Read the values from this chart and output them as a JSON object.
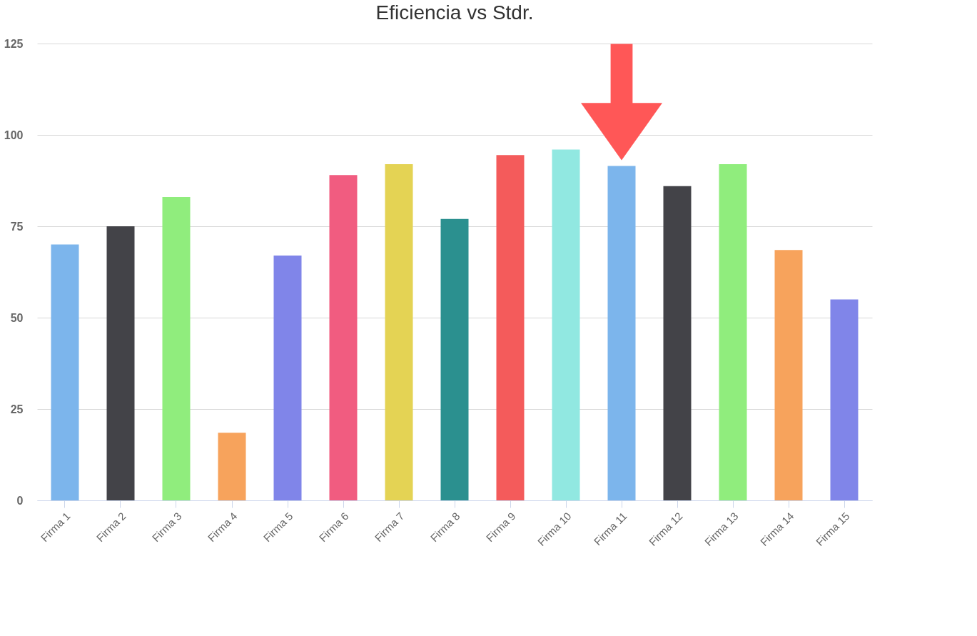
{
  "chart_data": {
    "type": "bar",
    "title": "Eficiencia vs Stdr.",
    "categories": [
      "Firma 1",
      "Firma 2",
      "Firma 3",
      "Firma 4",
      "Firma 5",
      "Firma 6",
      "Firma 7",
      "Firma 8",
      "Firma 9",
      "Firma 10",
      "Firma 11",
      "Firma 12",
      "Firma 13",
      "Firma 14",
      "Firma 15"
    ],
    "values": [
      70,
      75,
      83,
      18.5,
      67,
      89,
      92,
      77,
      94.5,
      96,
      91.5,
      86,
      92,
      68.5,
      55
    ],
    "colors": [
      "#7cb5ec",
      "#434348",
      "#90ed7d",
      "#f7a35c",
      "#8085e9",
      "#f15c80",
      "#e4d354",
      "#2b908f",
      "#f45b5b",
      "#91e8e1",
      "#7cb5ec",
      "#434348",
      "#90ed7d",
      "#f7a35c",
      "#8085e9"
    ],
    "ylim": [
      0,
      125
    ],
    "yticks": [
      0,
      25,
      50,
      75,
      100,
      125
    ],
    "grid": "y"
  }
}
